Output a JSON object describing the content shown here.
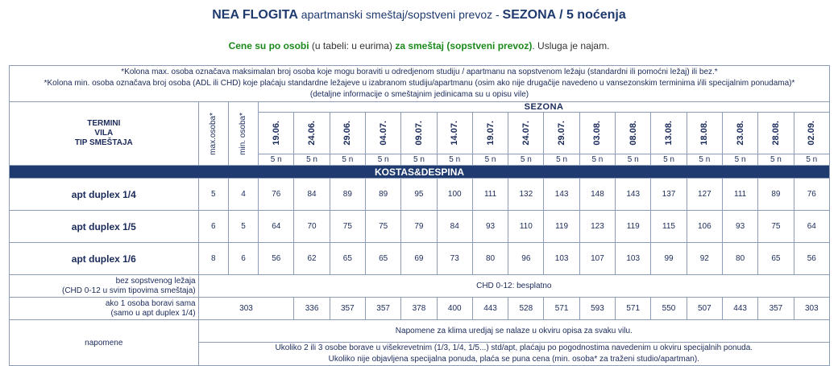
{
  "header": {
    "title_bold": "NEA FLOGITA",
    "title_rest": " apartmanski smeštaj/sopstveni prevoz - ",
    "title_season": "SEZONA / 5 noćenja",
    "subtitle_green1": "Cene su po osobi",
    "subtitle_plain1": " (u tabeli: u eurima) ",
    "subtitle_green2": "za smeštaj (sopstveni prevoz)",
    "subtitle_plain2": ". Usluga je najam."
  },
  "notes_top": [
    "*Kolona max. osoba označava maksimalan broj osoba koje mogu boraviti u odredjenom studiju / apartmanu na sopstvenom ležaju (standardni ili pomoćni ležaj) ili bez.*",
    "*Kolona min. osoba označava broj osoba (ADL ili CHD) koje plaćaju standardne ležajeve u izabranom studiju/apartmanu (osim ako nije drugačije navedeno u vansezonskim terminima i/ili specijalnim ponudama)*",
    "(detaljne informacije o smeštajnim jedinicama su u opisu vile)"
  ],
  "table_header": {
    "left_line1": "TERMINI",
    "left_line2": "VILA",
    "left_line3": "TIP SMEŠTAJA",
    "max_label": "max.osoba*",
    "min_label": "min. osoba*",
    "season_label": "SEZONA",
    "dates": [
      "19.06.",
      "24.06.",
      "29.06.",
      "04.07.",
      "09.07.",
      "14.07.",
      "19.07.",
      "24.07.",
      "29.07.",
      "03.08.",
      "08.08.",
      "13.08.",
      "18.08.",
      "23.08.",
      "28.08.",
      "02.09."
    ],
    "nights": [
      "5 n",
      "5 n",
      "5 n",
      "5 n",
      "5 n",
      "5 n",
      "5 n",
      "5 n",
      "5 n",
      "5 n",
      "5 n",
      "5 n",
      "5 n",
      "5 n",
      "5 n",
      "5 n"
    ]
  },
  "villa": "KOSTAS&DESPINA",
  "units": [
    {
      "name": "apt duplex 1/4",
      "max": "5",
      "min": "4",
      "prices": [
        "76",
        "84",
        "89",
        "89",
        "95",
        "100",
        "111",
        "132",
        "143",
        "148",
        "143",
        "137",
        "127",
        "111",
        "89",
        "76"
      ]
    },
    {
      "name": "apt duplex 1/5",
      "max": "6",
      "min": "5",
      "prices": [
        "64",
        "70",
        "75",
        "75",
        "79",
        "84",
        "93",
        "110",
        "119",
        "123",
        "119",
        "115",
        "106",
        "93",
        "75",
        "64"
      ]
    },
    {
      "name": "apt duplex 1/6",
      "max": "8",
      "min": "6",
      "prices": [
        "56",
        "62",
        "65",
        "65",
        "69",
        "73",
        "80",
        "96",
        "103",
        "107",
        "103",
        "99",
        "92",
        "80",
        "65",
        "56"
      ]
    }
  ],
  "extra_rows": {
    "no_bed_line1": "bez sopstvenog ležaja",
    "no_bed_line2": "(CHD 0-12 u svim tipovima smeštaja)",
    "no_bed_value": "CHD 0-12: besplatno",
    "single_line1": "ako 1 osoba boravi sama",
    "single_line2": "(samo u apt duplex 1/4)",
    "single_prices": [
      "303",
      "336",
      "357",
      "357",
      "378",
      "400",
      "443",
      "528",
      "571",
      "593",
      "571",
      "550",
      "507",
      "443",
      "357",
      "303"
    ]
  },
  "napomene": {
    "label": "napomene",
    "line1": "Napomene za klima uredjaj se nalaze u okviru opisa za svaku vilu.",
    "line2": "Ukoliko 2 ili 3 osobe borave u višekrevetnim (1/3, 1/4, 1/5...) std/apt, plaćaju po pogodnostima navedenim u okviru specijalnih ponuda.",
    "line3": "Ukoliko nije objavljena specijalna ponuda, plaća se puna cena (min. osoba* za traženi studio/apartman)."
  }
}
